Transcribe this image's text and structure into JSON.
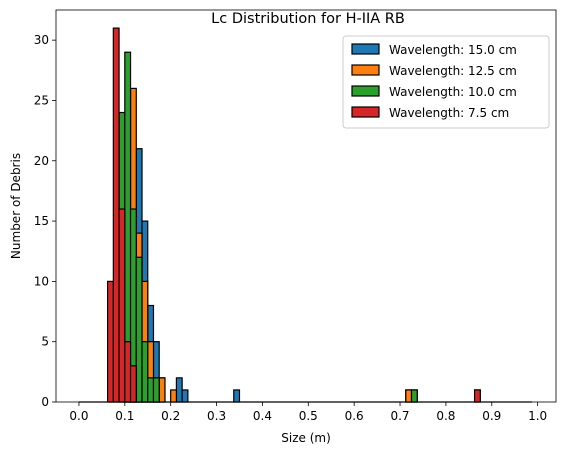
{
  "chart_data": {
    "type": "bar",
    "subtype": "stacked-histogram",
    "title": "Lc Distribution for H-IIA RB",
    "xlabel": "Size (m)",
    "ylabel": "Number of Debris",
    "xlim": [
      -0.05,
      1.04
    ],
    "ylim": [
      0,
      32.5
    ],
    "bin_width": 0.0125,
    "xticks": [
      "0.0",
      "0.1",
      "0.2",
      "0.3",
      "0.4",
      "0.5",
      "0.6",
      "0.7",
      "0.8",
      "0.9",
      "1.0"
    ],
    "xtick_values": [
      0.0,
      0.1,
      0.2,
      0.3,
      0.4,
      0.5,
      0.6,
      0.7,
      0.8,
      0.9,
      1.0
    ],
    "yticks": [
      "0",
      "5",
      "10",
      "15",
      "20",
      "25",
      "30"
    ],
    "ytick_values": [
      0,
      5,
      10,
      15,
      20,
      25,
      30
    ],
    "grid": false,
    "legend_position": "top-right",
    "draw_order": [
      0,
      1,
      2,
      3
    ],
    "series": [
      {
        "name": "Wavelength: 15.0 cm",
        "color": "#1f77b4",
        "bins": [
          {
            "x": 0.1125,
            "y": 14
          },
          {
            "x": 0.125,
            "y": 21
          },
          {
            "x": 0.1375,
            "y": 15
          },
          {
            "x": 0.15,
            "y": 8
          },
          {
            "x": 0.1625,
            "y": 5
          },
          {
            "x": 0.175,
            "y": 2
          },
          {
            "x": 0.2125,
            "y": 2
          },
          {
            "x": 0.225,
            "y": 1
          },
          {
            "x": 0.3375,
            "y": 1
          },
          {
            "x": 0.7125,
            "y": 1
          },
          {
            "x": 0.725,
            "y": 1
          },
          {
            "x": 0.8625,
            "y": 1
          }
        ]
      },
      {
        "name": "Wavelength: 12.5 cm",
        "color": "#ff7f0e",
        "bins": [
          {
            "x": 0.1,
            "y": 17
          },
          {
            "x": 0.1125,
            "y": 26
          },
          {
            "x": 0.125,
            "y": 14
          },
          {
            "x": 0.1375,
            "y": 10
          },
          {
            "x": 0.15,
            "y": 5
          },
          {
            "x": 0.1625,
            "y": 2
          },
          {
            "x": 0.175,
            "y": 2
          },
          {
            "x": 0.2,
            "y": 1
          },
          {
            "x": 0.7125,
            "y": 1
          }
        ]
      },
      {
        "name": "Wavelength: 10.0 cm",
        "color": "#2ca02c",
        "bins": [
          {
            "x": 0.0875,
            "y": 24
          },
          {
            "x": 0.1,
            "y": 29
          },
          {
            "x": 0.1125,
            "y": 16
          },
          {
            "x": 0.125,
            "y": 12
          },
          {
            "x": 0.1375,
            "y": 5
          },
          {
            "x": 0.15,
            "y": 2
          },
          {
            "x": 0.1625,
            "y": 2
          },
          {
            "x": 0.725,
            "y": 1
          }
        ]
      },
      {
        "name": "Wavelength: 7.5 cm",
        "color": "#d62728",
        "bins": [
          {
            "x": 0.0625,
            "y": 10
          },
          {
            "x": 0.075,
            "y": 31
          },
          {
            "x": 0.0875,
            "y": 16
          },
          {
            "x": 0.1,
            "y": 5
          },
          {
            "x": 0.1125,
            "y": 3
          },
          {
            "x": 0.8625,
            "y": 1
          }
        ]
      }
    ]
  }
}
